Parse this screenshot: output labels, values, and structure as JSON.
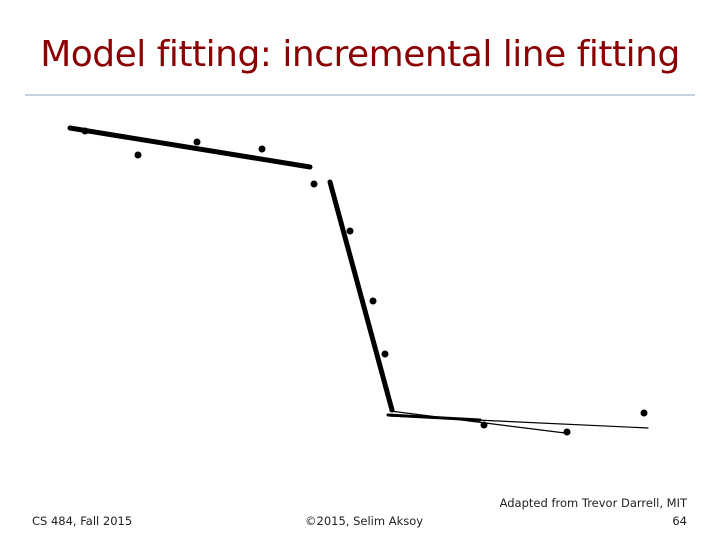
{
  "header": {
    "title": "Model fitting: incremental line fitting"
  },
  "footer": {
    "course": "CS 484, Fall 2015",
    "copyright": "©2015, Selim Aksoy",
    "credit": "Adapted from Trevor Darrell, MIT",
    "page": "64"
  }
}
